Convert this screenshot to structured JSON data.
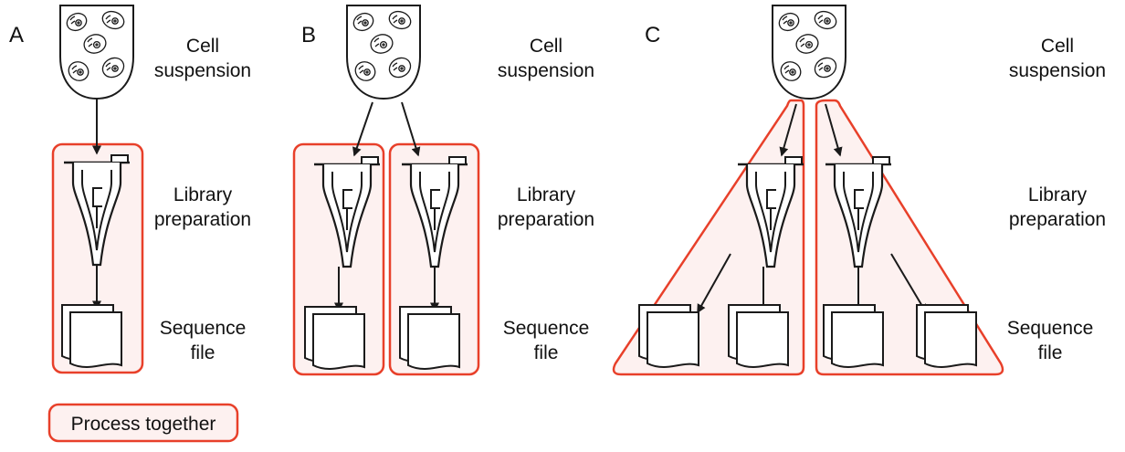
{
  "colors": {
    "highlight_stroke": "#e8402a",
    "highlight_fill": "#fdf1f0",
    "line": "#1a1a1a"
  },
  "panels": [
    {
      "letter": "A",
      "stage_labels": {
        "cells_line1": "Cell",
        "cells_line2": "suspension",
        "library_line1": "Library",
        "library_line2": "preparation",
        "sequence_line1": "Sequence",
        "sequence_line2": "file"
      }
    },
    {
      "letter": "B",
      "stage_labels": {
        "cells_line1": "Cell",
        "cells_line2": "suspension",
        "library_line1": "Library",
        "library_line2": "preparation",
        "sequence_line1": "Sequence",
        "sequence_line2": "file"
      }
    },
    {
      "letter": "C",
      "stage_labels": {
        "cells_line1": "Cell",
        "cells_line2": "suspension",
        "library_line1": "Library",
        "library_line2": "preparation",
        "sequence_line1": "Sequence",
        "sequence_line2": "file"
      }
    }
  ],
  "legend": {
    "label": "Process together"
  }
}
